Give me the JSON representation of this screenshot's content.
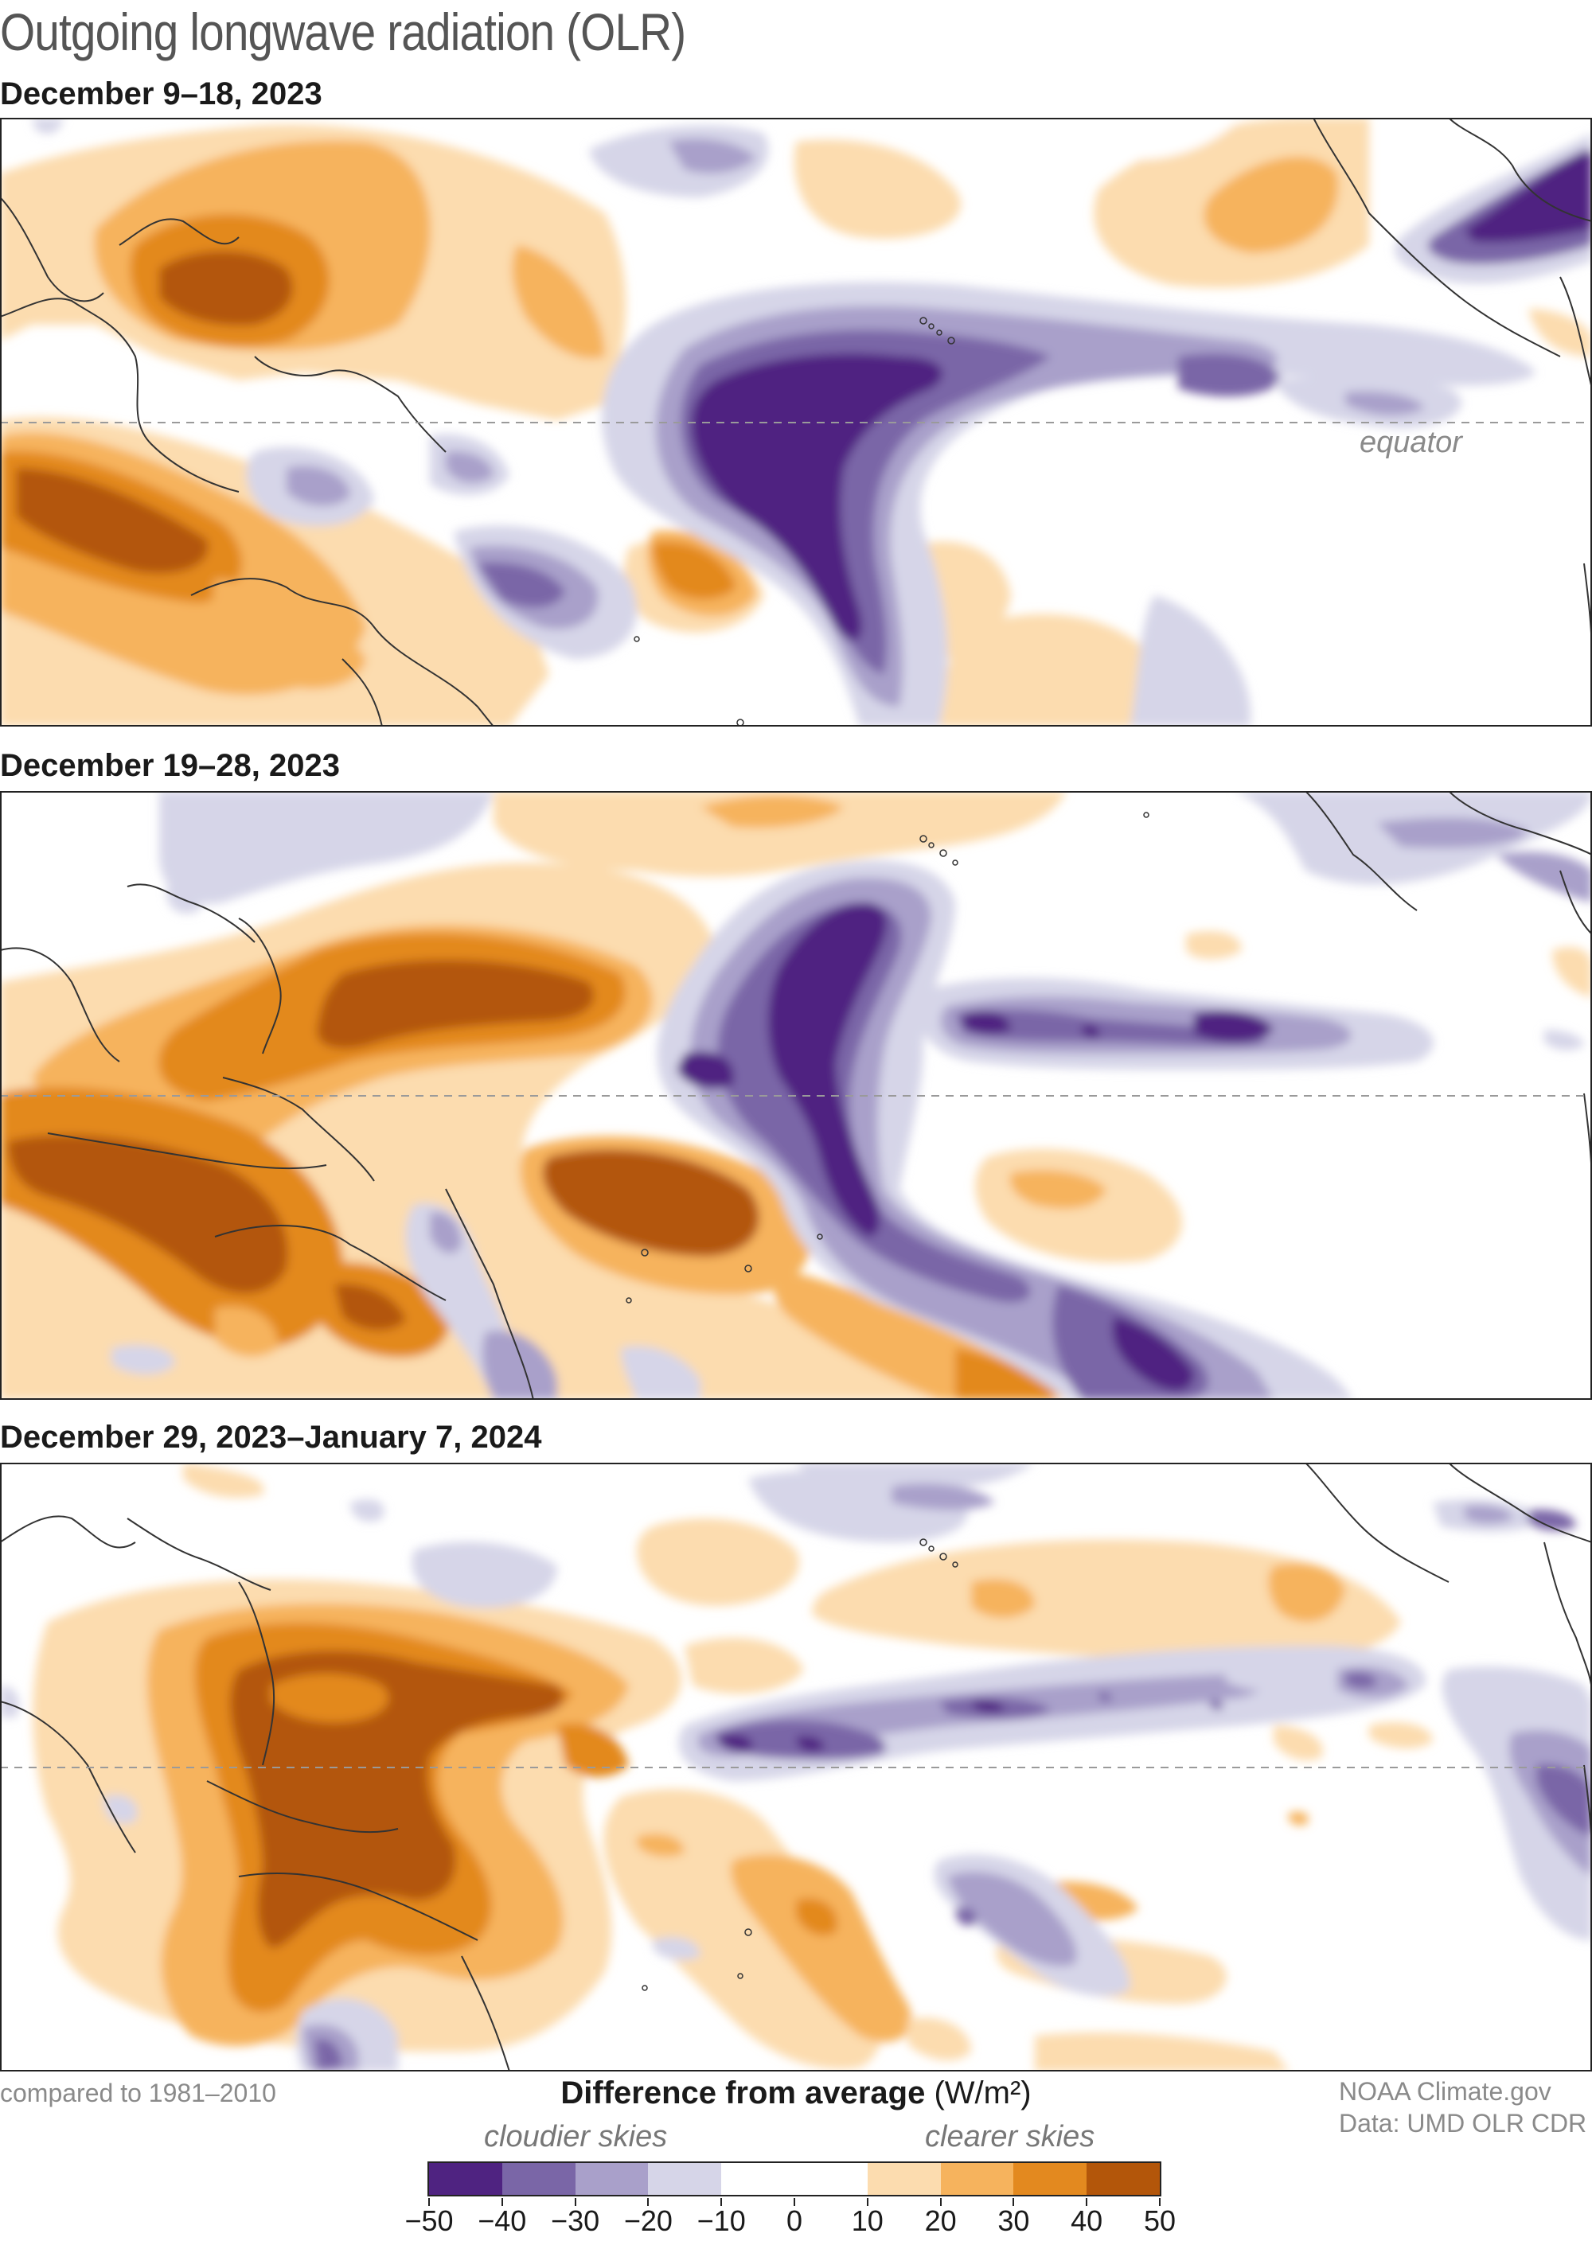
{
  "title": "Outgoing longwave radiation (OLR)",
  "panels": [
    {
      "label": "December 9–18, 2023",
      "equator_label": "equator"
    },
    {
      "label": "December 19–28, 2023"
    },
    {
      "label": "December 29, 2023–January 7, 2024"
    }
  ],
  "baseline_note": "compared to 1981–2010",
  "legend": {
    "title": "Difference from average",
    "units": "(W/m²)",
    "left_label": "cloudier skies",
    "right_label": "clearer skies",
    "ticks": [
      "−50",
      "−40",
      "−30",
      "−20",
      "−10",
      "0",
      "10",
      "20",
      "30",
      "40",
      "50"
    ],
    "colors": [
      "#4f2381",
      "#7a66a7",
      "#a9a0ca",
      "#d6d5e8",
      "#ffffff",
      "#ffffff",
      "#fcdcaf",
      "#f6b35d",
      "#e3891f",
      "#b3560a"
    ]
  },
  "credits": {
    "line1": "NOAA Climate.gov",
    "line2": "Data: UMD OLR CDR"
  }
}
